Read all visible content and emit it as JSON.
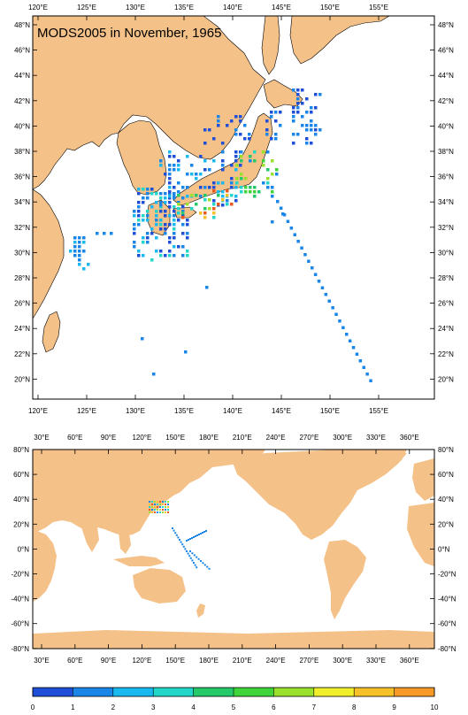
{
  "title": "MODS2005 in November, 1965",
  "regional_map": {
    "lon_labels": [
      "120°E",
      "125°E",
      "130°E",
      "135°E",
      "140°E",
      "145°E",
      "150°E",
      "155°E"
    ],
    "lat_labels": [
      "48°N",
      "46°N",
      "44°N",
      "42°N",
      "40°N",
      "38°N",
      "36°N",
      "34°N",
      "32°N",
      "30°N",
      "28°N",
      "26°N",
      "24°N",
      "22°N",
      "20°N"
    ]
  },
  "global_map": {
    "lon_labels": [
      "30°E",
      "60°E",
      "90°E",
      "120°E",
      "150°E",
      "180°E",
      "210°E",
      "240°E",
      "270°E",
      "300°E",
      "330°E",
      "360°E"
    ],
    "lat_labels": [
      "80°N",
      "60°N",
      "40°N",
      "20°N",
      "0°N",
      "-20°N",
      "-40°N",
      "-60°N",
      "-80°N"
    ]
  },
  "colorbar": {
    "labels": [
      "0",
      "1",
      "2",
      "3",
      "4",
      "5",
      "6",
      "7",
      "8",
      "9",
      "10"
    ],
    "colors": [
      "#1f4fd6",
      "#1a86e8",
      "#19b9f0",
      "#22d6c8",
      "#25c96a",
      "#3fd43a",
      "#9be02c",
      "#f1ef2c",
      "#f7c12a",
      "#f79a28",
      "#ea5a1e"
    ]
  },
  "colors": {
    "land": "#f4c189",
    "ocean": "#ffffff",
    "obs_low": "#1a86e8",
    "obs_high": "#ea5a1e"
  }
}
